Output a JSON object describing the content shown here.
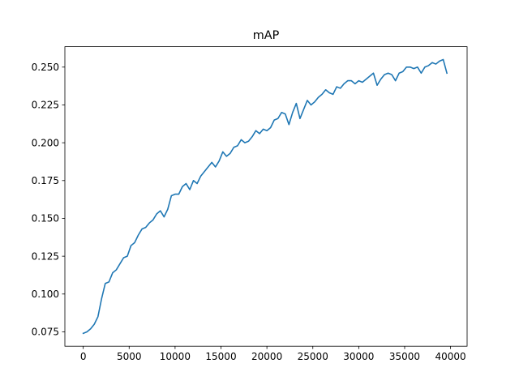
{
  "chart_data": {
    "type": "line",
    "title": "mAP",
    "xlabel": "",
    "ylabel": "",
    "xlim": [
      -2000,
      41800
    ],
    "ylim": [
      0.0655,
      0.2635
    ],
    "grid": false,
    "legend": "none",
    "x_ticks": [
      0,
      5000,
      10000,
      15000,
      20000,
      25000,
      30000,
      35000,
      40000
    ],
    "x_tick_labels": [
      "0",
      "5000",
      "10000",
      "15000",
      "20000",
      "25000",
      "30000",
      "35000",
      "40000"
    ],
    "y_ticks": [
      0.075,
      0.1,
      0.125,
      0.15,
      0.175,
      0.2,
      0.225,
      0.25
    ],
    "y_tick_labels": [
      "0.075",
      "0.100",
      "0.125",
      "0.150",
      "0.175",
      "0.200",
      "0.225",
      "0.250"
    ],
    "series": [
      {
        "color": "#1f77b4",
        "x": [
          0,
          400,
          800,
          1200,
          1600,
          2000,
          2400,
          2800,
          3200,
          3600,
          4000,
          4400,
          4800,
          5200,
          5600,
          6000,
          6400,
          6800,
          7200,
          7600,
          8000,
          8400,
          8800,
          9200,
          9600,
          10000,
          10400,
          10800,
          11200,
          11600,
          12000,
          12400,
          12800,
          13200,
          13600,
          14000,
          14400,
          14800,
          15200,
          15600,
          16000,
          16400,
          16800,
          17200,
          17600,
          18000,
          18400,
          18800,
          19200,
          19600,
          20000,
          20400,
          20800,
          21200,
          21600,
          22000,
          22400,
          22800,
          23200,
          23600,
          24000,
          24400,
          24800,
          25200,
          25600,
          26000,
          26400,
          26800,
          27200,
          27600,
          28000,
          28400,
          28800,
          29200,
          29600,
          30000,
          30400,
          30800,
          31200,
          31600,
          32000,
          32400,
          32800,
          33200,
          33600,
          34000,
          34400,
          34800,
          35200,
          35600,
          36000,
          36400,
          36800,
          37200,
          37600,
          38000,
          38400,
          38800,
          39200,
          39600
        ],
        "y": [
          0.074,
          0.075,
          0.077,
          0.08,
          0.085,
          0.097,
          0.107,
          0.108,
          0.114,
          0.116,
          0.12,
          0.124,
          0.125,
          0.132,
          0.134,
          0.139,
          0.143,
          0.144,
          0.147,
          0.149,
          0.153,
          0.155,
          0.151,
          0.156,
          0.165,
          0.166,
          0.166,
          0.171,
          0.173,
          0.169,
          0.175,
          0.173,
          0.178,
          0.181,
          0.184,
          0.187,
          0.184,
          0.188,
          0.194,
          0.191,
          0.193,
          0.197,
          0.198,
          0.202,
          0.2,
          0.201,
          0.204,
          0.208,
          0.206,
          0.209,
          0.208,
          0.21,
          0.215,
          0.216,
          0.22,
          0.219,
          0.212,
          0.22,
          0.226,
          0.216,
          0.222,
          0.228,
          0.225,
          0.227,
          0.23,
          0.232,
          0.235,
          0.233,
          0.232,
          0.237,
          0.236,
          0.239,
          0.241,
          0.241,
          0.239,
          0.241,
          0.24,
          0.242,
          0.244,
          0.246,
          0.238,
          0.242,
          0.245,
          0.246,
          0.245,
          0.241,
          0.246,
          0.247,
          0.25,
          0.25,
          0.249,
          0.25,
          0.246,
          0.25,
          0.251,
          0.253,
          0.252,
          0.254,
          0.255,
          0.246
        ]
      }
    ]
  }
}
